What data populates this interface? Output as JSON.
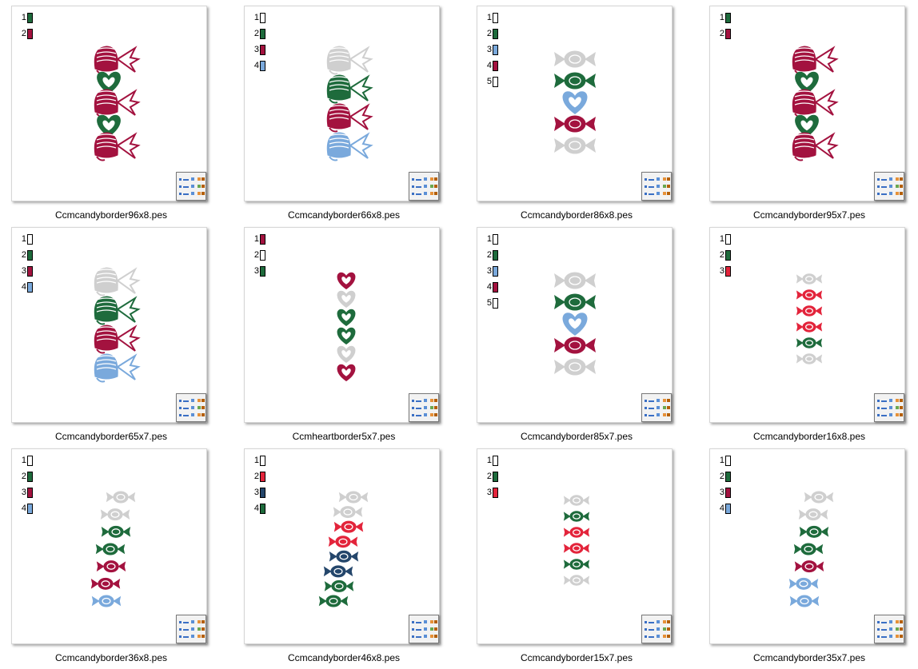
{
  "files": [
    {
      "name": "Ccmcandyborder96x8.pes",
      "colors": [
        "#1e6b3c",
        "#a3123f"
      ],
      "motif": "candy",
      "seq": [
        1,
        0,
        1,
        0,
        1
      ]
    },
    {
      "name": "Ccmcandyborder66x8.pes",
      "colors": [
        "#ffffff",
        "#1e6b3c",
        "#a3123f",
        "#7aa9dc"
      ],
      "motif": "candy",
      "seq": [
        0,
        1,
        2,
        3
      ]
    },
    {
      "name": "Ccmcandyborder86x8.pes",
      "colors": [
        "#ffffff",
        "#1e6b3c",
        "#7aa9dc",
        "#a3123f",
        "#ffffff"
      ],
      "motif": "wrapped",
      "seq": [
        0,
        1,
        2,
        3,
        4
      ]
    },
    {
      "name": "Ccmcandyborder95x7.pes",
      "colors": [
        "#1e6b3c",
        "#a3123f"
      ],
      "motif": "candy",
      "seq": [
        1,
        0,
        1,
        0,
        1
      ]
    },
    {
      "name": "Ccmcandyborder65x7.pes",
      "colors": [
        "#ffffff",
        "#1e6b3c",
        "#a3123f",
        "#7aa9dc"
      ],
      "motif": "candy",
      "seq": [
        0,
        1,
        2,
        3
      ]
    },
    {
      "name": "Ccmheartborder5x7.pes",
      "colors": [
        "#a3123f",
        "#ffffff",
        "#1e6b3c"
      ],
      "motif": "hearts",
      "seq": [
        0,
        1,
        2,
        2,
        1,
        0
      ]
    },
    {
      "name": "Ccmcandyborder85x7.pes",
      "colors": [
        "#ffffff",
        "#1e6b3c",
        "#7aa9dc",
        "#a3123f",
        "#ffffff"
      ],
      "motif": "wrapped",
      "seq": [
        0,
        1,
        2,
        3,
        4
      ]
    },
    {
      "name": "Ccmcandyborder16x8.pes",
      "colors": [
        "#ffffff",
        "#1e6b3c",
        "#e3243b"
      ],
      "motif": "small",
      "seq": [
        0,
        2,
        2,
        2,
        1,
        0
      ]
    },
    {
      "name": "Ccmcandyborder36x8.pes",
      "colors": [
        "#ffffff",
        "#1e6b3c",
        "#a3123f",
        "#7aa9dc"
      ],
      "motif": "diag",
      "seq": [
        0,
        0,
        1,
        1,
        2,
        2,
        3
      ]
    },
    {
      "name": "Ccmcandyborder46x8.pes",
      "colors": [
        "#ffffff",
        "#e3243b",
        "#24466b",
        "#1e6b3c"
      ],
      "motif": "diag",
      "seq": [
        0,
        0,
        1,
        1,
        2,
        2,
        3,
        3
      ]
    },
    {
      "name": "Ccmcandyborder15x7.pes",
      "colors": [
        "#ffffff",
        "#1e6b3c",
        "#e3243b"
      ],
      "motif": "small",
      "seq": [
        0,
        1,
        2,
        2,
        1,
        0
      ]
    },
    {
      "name": "Ccmcandyborder35x7.pes",
      "colors": [
        "#ffffff",
        "#1e6b3c",
        "#a3123f",
        "#7aa9dc"
      ],
      "motif": "diag",
      "seq": [
        0,
        0,
        1,
        1,
        2,
        3,
        3
      ]
    }
  ],
  "icons": {
    "badge": "app-thumbnail-overlay-icon"
  }
}
